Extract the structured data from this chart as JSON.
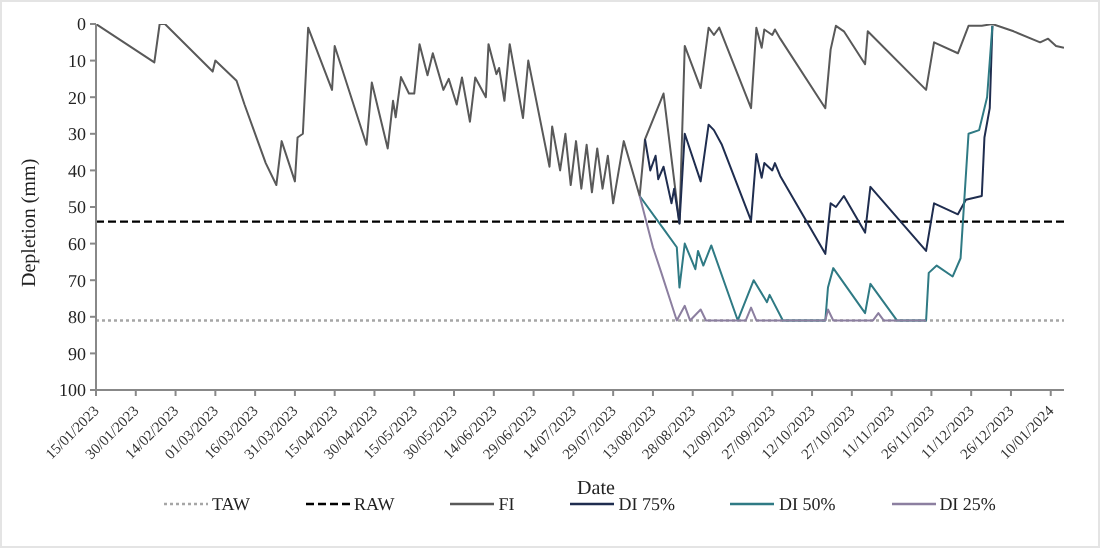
{
  "chart_data": {
    "type": "line",
    "xlabel": "Date",
    "ylabel": "Depletion (mm)",
    "xlim": [
      "2023-01-15",
      "2024-01-15"
    ],
    "xticks": [
      {
        "value": "2023-01-15",
        "label": "15/01/2023"
      },
      {
        "value": "2023-01-30",
        "label": "30/01/2023"
      },
      {
        "value": "2023-02-14",
        "label": "14/02/2023"
      },
      {
        "value": "2023-03-01",
        "label": "01/03/2023"
      },
      {
        "value": "2023-03-16",
        "label": "16/03/2023"
      },
      {
        "value": "2023-03-31",
        "label": "31/03/2023"
      },
      {
        "value": "2023-04-15",
        "label": "15/04/2023"
      },
      {
        "value": "2023-04-30",
        "label": "30/04/2023"
      },
      {
        "value": "2023-05-15",
        "label": "15/05/2023"
      },
      {
        "value": "2023-05-30",
        "label": "30/05/2023"
      },
      {
        "value": "2023-06-14",
        "label": "14/06/2023"
      },
      {
        "value": "2023-06-29",
        "label": "29/06/2023"
      },
      {
        "value": "2023-07-14",
        "label": "14/07/2023"
      },
      {
        "value": "2023-07-29",
        "label": "29/07/2023"
      },
      {
        "value": "2023-08-13",
        "label": "13/08/2023"
      },
      {
        "value": "2023-08-28",
        "label": "28/08/2023"
      },
      {
        "value": "2023-09-12",
        "label": "12/09/2023"
      },
      {
        "value": "2023-09-27",
        "label": "27/09/2023"
      },
      {
        "value": "2023-10-12",
        "label": "12/10/2023"
      },
      {
        "value": "2023-10-27",
        "label": "27/10/2023"
      },
      {
        "value": "2023-11-11",
        "label": "11/11/2023"
      },
      {
        "value": "2023-11-26",
        "label": "26/11/2023"
      },
      {
        "value": "2023-12-11",
        "label": "11/12/2023"
      },
      {
        "value": "2023-12-26",
        "label": "26/12/2023"
      },
      {
        "value": "2024-01-10",
        "label": "10/01/2024"
      }
    ],
    "ylim": [
      100,
      0
    ],
    "yticks": [
      0,
      10,
      20,
      30,
      40,
      50,
      60,
      70,
      80,
      90,
      100
    ],
    "grid": false,
    "legend": "bottom",
    "marker": "none",
    "series": [
      {
        "name": "TAW",
        "color": "#a6a6a6",
        "line_style": "dotted",
        "x": [
          "2023-01-15",
          "2024-01-15"
        ],
        "values": [
          81,
          81
        ]
      },
      {
        "name": "RAW",
        "color": "#000000",
        "line_style": "dashed",
        "x": [
          "2023-01-15",
          "2024-01-15"
        ],
        "values": [
          54,
          54
        ]
      },
      {
        "name": "FI",
        "color": "#595959",
        "line_style": "solid",
        "x": [
          "2023-01-15",
          "2023-02-06",
          "2023-02-08",
          "2023-02-10",
          "2023-02-28",
          "2023-03-01",
          "2023-03-09",
          "2023-03-12",
          "2023-03-20",
          "2023-03-24",
          "2023-03-26",
          "2023-03-31",
          "2023-04-01",
          "2023-04-03",
          "2023-04-05",
          "2023-04-14",
          "2023-04-15",
          "2023-04-27",
          "2023-04-29",
          "2023-05-05",
          "2023-05-07",
          "2023-05-08",
          "2023-05-10",
          "2023-05-13",
          "2023-05-15",
          "2023-05-17",
          "2023-05-20",
          "2023-05-22",
          "2023-05-26",
          "2023-05-28",
          "2023-05-31",
          "2023-06-02",
          "2023-06-05",
          "2023-06-07",
          "2023-06-11",
          "2023-06-12",
          "2023-06-15",
          "2023-06-16",
          "2023-06-18",
          "2023-06-20",
          "2023-06-25",
          "2023-06-27",
          "2023-07-05",
          "2023-07-06",
          "2023-07-09",
          "2023-07-11",
          "2023-07-13",
          "2023-07-15",
          "2023-07-17",
          "2023-07-19",
          "2023-07-21",
          "2023-07-23",
          "2023-07-25",
          "2023-07-27",
          "2023-07-29",
          "2023-08-02",
          "2023-08-08",
          "2023-08-10",
          "2023-08-17",
          "2023-08-23",
          "2023-08-25",
          "2023-08-31",
          "2023-09-03",
          "2023-09-05",
          "2023-09-07",
          "2023-09-19",
          "2023-09-21",
          "2023-09-23",
          "2023-09-24",
          "2023-09-27",
          "2023-09-28",
          "2023-09-30",
          "2023-10-17",
          "2023-10-19",
          "2023-10-21",
          "2023-10-24",
          "2023-11-01",
          "2023-11-02",
          "2023-11-24",
          "2023-11-27",
          "2023-12-06",
          "2023-12-10",
          "2023-12-15",
          "2023-12-19",
          "2023-12-27",
          "2024-01-06",
          "2024-01-09",
          "2024-01-12",
          "2024-01-15"
        ],
        "values": [
          0,
          10.5,
          0,
          0,
          13,
          10,
          15.5,
          22,
          38,
          44,
          32,
          43,
          31,
          30,
          1,
          18,
          6,
          33,
          16,
          34,
          21,
          25.5,
          14.5,
          19,
          19,
          5.5,
          14,
          8,
          18,
          15,
          22,
          14.6,
          26.7,
          14.6,
          20,
          5.5,
          13.7,
          12,
          21,
          5.5,
          25.7,
          10,
          39,
          28,
          40,
          30,
          44,
          32,
          45,
          33,
          46,
          34,
          45,
          36,
          49,
          32,
          47,
          31.5,
          19,
          54.5,
          6,
          17.5,
          1,
          3,
          1,
          23,
          1,
          6.5,
          1.5,
          3,
          1.5,
          4,
          23,
          7,
          0.5,
          2,
          11,
          2,
          18,
          5,
          8,
          0.5,
          0.5,
          0,
          2,
          5,
          4,
          6,
          6.5
        ]
      },
      {
        "name": "DI 75%",
        "color": "#1f2d4f",
        "line_style": "solid",
        "x": [
          "2023-08-10",
          "2023-08-12",
          "2023-08-14",
          "2023-08-15",
          "2023-08-17",
          "2023-08-20",
          "2023-08-21",
          "2023-08-23",
          "2023-08-25",
          "2023-08-31",
          "2023-09-03",
          "2023-09-05",
          "2023-09-08",
          "2023-09-19",
          "2023-09-21",
          "2023-09-23",
          "2023-09-24",
          "2023-09-27",
          "2023-09-28",
          "2023-09-30",
          "2023-10-17",
          "2023-10-19",
          "2023-10-21",
          "2023-10-24",
          "2023-11-01",
          "2023-11-03",
          "2023-11-24",
          "2023-11-27",
          "2023-12-06",
          "2023-12-09",
          "2023-12-15",
          "2023-12-16",
          "2023-12-18",
          "2023-12-19"
        ],
        "values": [
          31.5,
          40,
          36,
          42.4,
          39,
          49,
          45,
          54.5,
          30,
          43,
          27.5,
          29,
          33,
          53.7,
          35.5,
          42,
          38,
          40,
          38,
          41.5,
          62.8,
          49,
          50,
          47,
          57,
          44.5,
          62,
          49,
          52,
          48,
          47,
          31,
          23,
          0.5
        ]
      },
      {
        "name": "DI 50%",
        "color": "#2f7a84",
        "line_style": "solid",
        "x": [
          "2023-08-08",
          "2023-08-17",
          "2023-08-22",
          "2023-08-23",
          "2023-08-25",
          "2023-08-29",
          "2023-08-30",
          "2023-09-01",
          "2023-09-04",
          "2023-09-14",
          "2023-09-20",
          "2023-09-25",
          "2023-09-26",
          "2023-10-01",
          "2023-10-17",
          "2023-10-18",
          "2023-10-20",
          "2023-11-01",
          "2023-11-03",
          "2023-11-13",
          "2023-11-24",
          "2023-11-25",
          "2023-11-28",
          "2023-12-04",
          "2023-12-07",
          "2023-12-10",
          "2023-12-14",
          "2023-12-17",
          "2023-12-19"
        ],
        "values": [
          47,
          56,
          61,
          72,
          60,
          67,
          62,
          66,
          60.5,
          81,
          70,
          76,
          74,
          81,
          81,
          72,
          66.7,
          79,
          71,
          81,
          81,
          68,
          66,
          69,
          64,
          30,
          29,
          20,
          0.5
        ]
      },
      {
        "name": "DI 25%",
        "color": "#8c7fa0",
        "line_style": "solid",
        "x": [
          "2023-08-08",
          "2023-08-13",
          "2023-08-16",
          "2023-08-22",
          "2023-08-25",
          "2023-08-27",
          "2023-08-31",
          "2023-09-02",
          "2023-09-17",
          "2023-09-19",
          "2023-09-21",
          "2023-10-17",
          "2023-10-18",
          "2023-10-20",
          "2023-11-04",
          "2023-11-06",
          "2023-11-08",
          "2023-11-24"
        ],
        "values": [
          47,
          61,
          67.6,
          81,
          77,
          81,
          78,
          81,
          81,
          77.5,
          81,
          81,
          78,
          81,
          81,
          79,
          81,
          81
        ]
      }
    ]
  }
}
